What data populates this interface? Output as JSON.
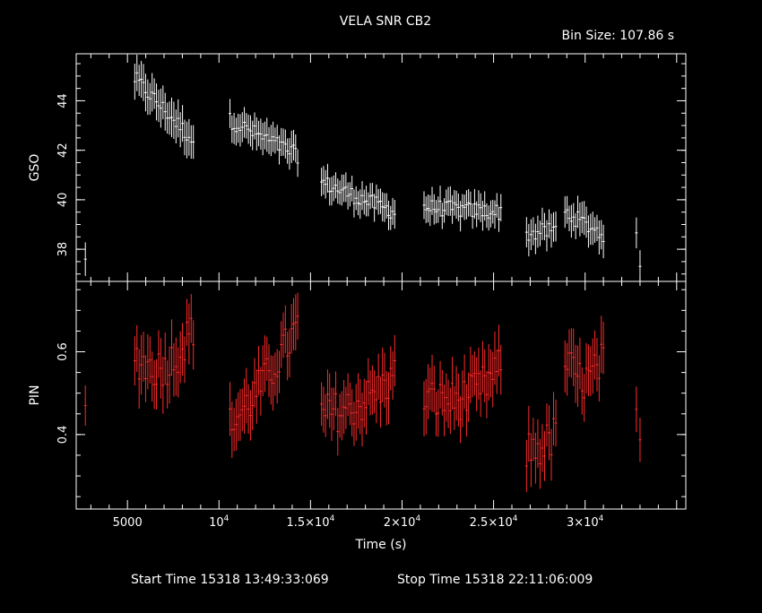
{
  "chart_data": {
    "type": "scatter",
    "title": "VELA SNR CB2",
    "bin_size_label": "Bin Size:",
    "bin_size_value": "107.86 s",
    "xlabel": "Time (s)",
    "xlim": [
      2200,
      35500
    ],
    "x_ticks": [
      {
        "value": 5000,
        "label": "5000"
      },
      {
        "value": 10000,
        "label": "10",
        "exp": "4"
      },
      {
        "value": 15000,
        "label": "1.5×10",
        "exp": "4"
      },
      {
        "value": 20000,
        "label": "2×10",
        "exp": "4"
      },
      {
        "value": 25000,
        "label": "2.5×10",
        "exp": "4"
      },
      {
        "value": 30000,
        "label": "3×10",
        "exp": "4"
      }
    ],
    "footer": {
      "start_label": "Start Time",
      "start_value": "15318 13:49:33:069",
      "stop_label": "Stop Time",
      "stop_value": "15318 22:11:06:009"
    },
    "panels": [
      {
        "name": "GSO",
        "ylabel": "GSO",
        "color": "#ffffff",
        "ylim": [
          36.7,
          45.9
        ],
        "y_ticks": [
          38,
          40,
          42,
          44
        ],
        "segments": [
          {
            "x": [
              2700
            ],
            "y": [
              37.6
            ],
            "err": [
              0.65
            ]
          },
          {
            "x": [
              5400,
              8600
            ],
            "y": [
              44.9,
              42.4
            ],
            "err": [
              0.7,
              0.7
            ],
            "n": 28
          },
          {
            "x": [
              10600,
              14300
            ],
            "y": [
              43.2,
              41.8
            ],
            "err": [
              0.6,
              0.6
            ],
            "n": 34
          },
          {
            "x": [
              15600,
              19600
            ],
            "y": [
              40.7,
              39.5
            ],
            "err": [
              0.55,
              0.55
            ],
            "n": 37
          },
          {
            "x": [
              21200,
              25400
            ],
            "y": [
              39.7,
              39.5
            ],
            "err": [
              0.55,
              0.55
            ],
            "n": 39
          },
          {
            "x": [
              26800,
              28400
            ],
            "y": [
              38.6,
              38.8
            ],
            "err": [
              0.6,
              0.6
            ],
            "n": 14
          },
          {
            "x": [
              28900,
              31000
            ],
            "y": [
              39.5,
              38.6
            ],
            "err": [
              0.6,
              0.6
            ],
            "n": 19
          },
          {
            "x": [
              32800,
              33000
            ],
            "y": [
              38.7,
              37.0
            ],
            "err": [
              0.6,
              0.6
            ],
            "n": 2
          }
        ]
      },
      {
        "name": "PIN",
        "ylabel": "PIN",
        "color": "#ff2b2b",
        "ylim": [
          0.22,
          0.77
        ],
        "y_ticks": [
          0.4,
          0.6
        ],
        "y_tick_labels": [
          "0.4",
          "0.6"
        ],
        "segments": [
          {
            "x": [
              2700
            ],
            "y": [
              0.47
            ],
            "err": [
              0.045
            ]
          },
          {
            "x": [
              5400,
              8600
            ],
            "y": [
              0.59,
              0.66
            ],
            "err": [
              0.065,
              0.065
            ],
            "n": 28,
            "dip": 0.22
          },
          {
            "x": [
              10600,
              14300
            ],
            "y": [
              0.42,
              0.66
            ],
            "err": [
              0.06,
              0.06
            ],
            "n": 34,
            "dip": 0.05
          },
          {
            "x": [
              15600,
              19600
            ],
            "y": [
              0.45,
              0.54
            ],
            "err": [
              0.06,
              0.06
            ],
            "n": 37,
            "dip": 0.08
          },
          {
            "x": [
              21200,
              25400
            ],
            "y": [
              0.49,
              0.56
            ],
            "err": [
              0.06,
              0.06
            ],
            "n": 39,
            "dip": 0.14
          },
          {
            "x": [
              26800,
              28400
            ],
            "y": [
              0.36,
              0.4
            ],
            "err": [
              0.06,
              0.06
            ],
            "n": 14,
            "dip": 0.03
          },
          {
            "x": [
              28900,
              31000
            ],
            "y": [
              0.58,
              0.58
            ],
            "err": [
              0.065,
              0.065
            ],
            "n": 19,
            "dip": 0.18
          },
          {
            "x": [
              32800,
              33000
            ],
            "y": [
              0.42,
              0.35
            ],
            "err": [
              0.05,
              0.05
            ],
            "n": 2,
            "dip": 0
          }
        ]
      }
    ]
  }
}
